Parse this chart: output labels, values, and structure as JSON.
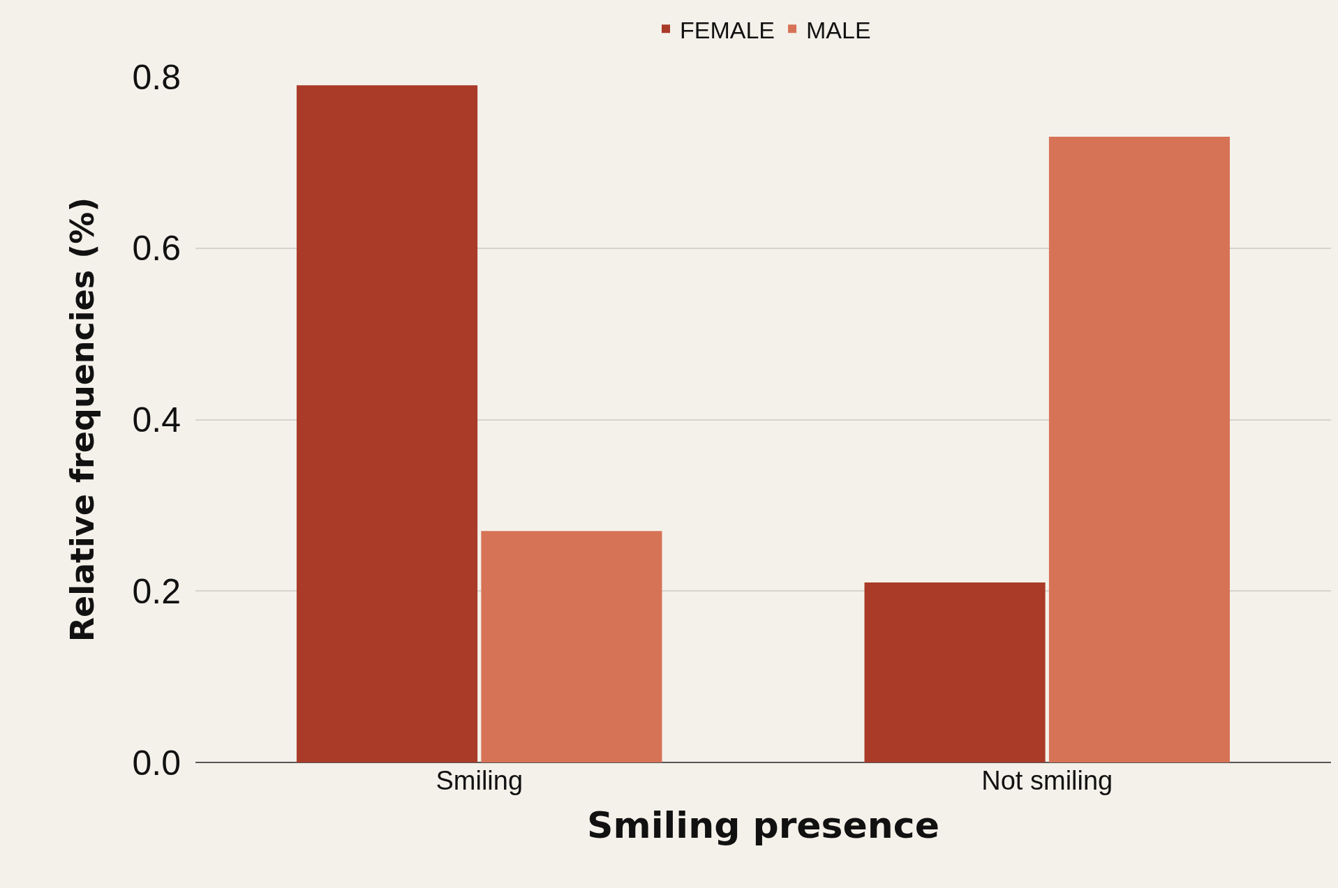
{
  "chart_data": {
    "type": "bar",
    "xlabel": "Smiling presence",
    "ylabel": "Relative frequencies (%)",
    "categories": [
      "Smiling",
      "Not smiling"
    ],
    "series": [
      {
        "name": "FEMALE",
        "color": "#a93b28",
        "values": [
          0.79,
          0.21
        ]
      },
      {
        "name": "MALE",
        "color": "#d67357",
        "values": [
          0.27,
          0.73
        ]
      }
    ],
    "ylim": [
      0,
      0.8
    ],
    "yticks": [
      {
        "value": 0,
        "label": "0.0"
      },
      0.2,
      0.4,
      0.6,
      0.8
    ],
    "grid": "y",
    "legend": "top"
  }
}
